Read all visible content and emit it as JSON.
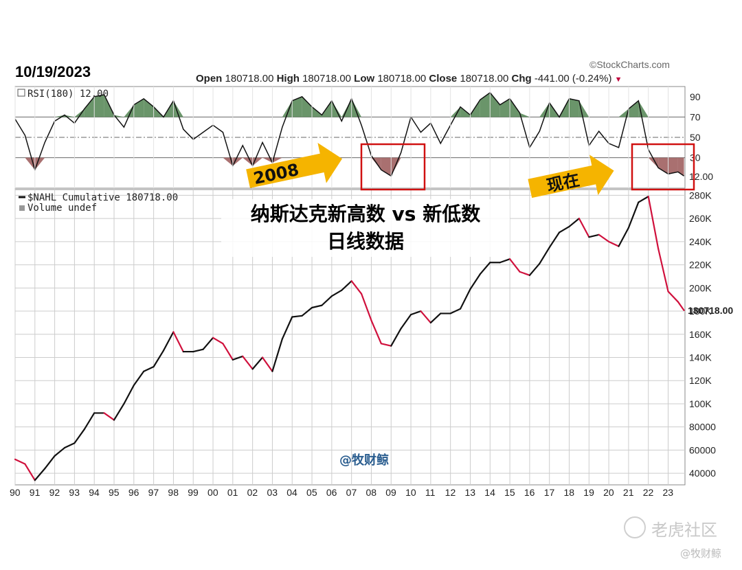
{
  "header": {
    "date": "10/19/2023",
    "source": "©StockCharts.com",
    "ohlc": {
      "open_label": "Open",
      "open": "180718.00",
      "high_label": "High",
      "high": "180718.00",
      "low_label": "Low",
      "low": "180718.00",
      "close_label": "Close",
      "close": "180718.00",
      "chg_label": "Chg",
      "chg": "-441.00 (-0.24%)"
    }
  },
  "annotations": {
    "title_line1": "纳斯达克新高数 vs 新低数",
    "title_line2": "日线数据",
    "arrow_2008": "2008",
    "arrow_now": "现在",
    "watermark": "@牧财鲸",
    "footer_brand": "老虎社区",
    "footer_author": "@牧财鲸"
  },
  "colors": {
    "rsi_over": "#5a8a5a",
    "rsi_under": "#a06060",
    "line_up": "#111111",
    "line_down": "#d0103c",
    "box": "#d01010",
    "arrow": "#f5b400",
    "grid": "#cccccc"
  },
  "chart_data": [
    {
      "type": "line",
      "panel": "top",
      "legend": "RSI(180) 12.00",
      "ylim": [
        0,
        100
      ],
      "yticks": [
        30,
        50,
        70,
        90
      ],
      "reference_lines": [
        30,
        50,
        70
      ],
      "last_value": "12.00",
      "x": [
        1990.0,
        1990.5,
        1991.0,
        1991.5,
        1992.0,
        1992.5,
        1993.0,
        1993.5,
        1994.0,
        1994.5,
        1995.0,
        1995.5,
        1996.0,
        1996.5,
        1997.0,
        1997.5,
        1998.0,
        1998.5,
        1999.0,
        1999.5,
        2000.0,
        2000.5,
        2001.0,
        2001.5,
        2002.0,
        2002.5,
        2003.0,
        2003.5,
        2004.0,
        2004.5,
        2005.0,
        2005.5,
        2006.0,
        2006.5,
        2007.0,
        2007.5,
        2008.0,
        2008.5,
        2009.0,
        2009.5,
        2010.0,
        2010.5,
        2011.0,
        2011.5,
        2012.0,
        2012.5,
        2013.0,
        2013.5,
        2014.0,
        2014.5,
        2015.0,
        2015.5,
        2016.0,
        2016.5,
        2017.0,
        2017.5,
        2018.0,
        2018.5,
        2019.0,
        2019.5,
        2020.0,
        2020.5,
        2021.0,
        2021.5,
        2022.0,
        2022.5,
        2023.0,
        2023.5,
        2023.8
      ],
      "y": [
        68,
        52,
        18,
        45,
        66,
        72,
        64,
        78,
        90,
        92,
        72,
        60,
        82,
        88,
        80,
        70,
        86,
        58,
        48,
        55,
        62,
        55,
        22,
        42,
        22,
        45,
        25,
        60,
        86,
        90,
        80,
        72,
        86,
        66,
        88,
        62,
        32,
        18,
        12,
        35,
        70,
        55,
        64,
        44,
        62,
        80,
        72,
        87,
        94,
        82,
        88,
        74,
        40,
        56,
        84,
        70,
        88,
        86,
        42,
        56,
        44,
        40,
        78,
        86,
        38,
        20,
        14,
        16,
        12
      ]
    },
    {
      "type": "line",
      "panel": "main",
      "legend": "$NAHL Cumulative 180718.00",
      "legend2": "Volume undef",
      "ylim": [
        30000,
        285000
      ],
      "yticks": [
        40000,
        60000,
        80000,
        "100K",
        "120K",
        "140K",
        "160K",
        "180K",
        "200K",
        "220K",
        "240K",
        "260K",
        "280K"
      ],
      "last_value": "180718.00",
      "xticks": [
        "90",
        "91",
        "92",
        "93",
        "94",
        "95",
        "96",
        "97",
        "98",
        "99",
        "00",
        "01",
        "02",
        "03",
        "04",
        "05",
        "06",
        "07",
        "08",
        "09",
        "10",
        "11",
        "12",
        "13",
        "14",
        "15",
        "16",
        "17",
        "18",
        "19",
        "20",
        "21",
        "22",
        "23"
      ],
      "x": [
        1990.0,
        1990.5,
        1991.0,
        1991.5,
        1992.0,
        1992.5,
        1993.0,
        1993.5,
        1994.0,
        1994.5,
        1995.0,
        1995.5,
        1996.0,
        1996.5,
        1997.0,
        1997.5,
        1998.0,
        1998.5,
        1999.0,
        1999.5,
        2000.0,
        2000.5,
        2001.0,
        2001.5,
        2002.0,
        2002.5,
        2003.0,
        2003.5,
        2004.0,
        2004.5,
        2005.0,
        2005.5,
        2006.0,
        2006.5,
        2007.0,
        2007.5,
        2008.0,
        2008.5,
        2009.0,
        2009.5,
        2010.0,
        2010.5,
        2011.0,
        2011.5,
        2012.0,
        2012.5,
        2013.0,
        2013.5,
        2014.0,
        2014.5,
        2015.0,
        2015.5,
        2016.0,
        2016.5,
        2017.0,
        2017.5,
        2018.0,
        2018.5,
        2019.0,
        2019.5,
        2020.0,
        2020.5,
        2021.0,
        2021.5,
        2022.0,
        2022.5,
        2023.0,
        2023.5,
        2023.8
      ],
      "y": [
        52000,
        48000,
        34000,
        44000,
        55000,
        62000,
        66000,
        78000,
        92000,
        92000,
        86000,
        100000,
        116000,
        128000,
        132000,
        146000,
        162000,
        145000,
        145000,
        147000,
        157000,
        152000,
        138000,
        141000,
        130000,
        140000,
        128000,
        156000,
        175000,
        176000,
        183000,
        185000,
        193000,
        198000,
        206000,
        195000,
        172000,
        152000,
        150000,
        165000,
        177000,
        180000,
        170000,
        178000,
        178000,
        182000,
        199000,
        212000,
        222000,
        222000,
        225000,
        214000,
        211000,
        221000,
        235000,
        248000,
        253000,
        260000,
        244000,
        246000,
        240000,
        236000,
        252000,
        274000,
        279000,
        234000,
        197000,
        188000,
        180718
      ]
    }
  ]
}
